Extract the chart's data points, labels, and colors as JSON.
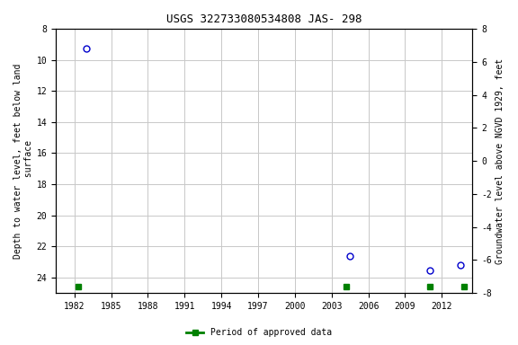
{
  "title": "USGS 322733080534808 JAS- 298",
  "ylabel_left": "Depth to water level, feet below land\n surface",
  "ylabel_right": "Groundwater level above NGVD 1929, feet",
  "background_color": "#ffffff",
  "plot_bg_color": "#ffffff",
  "grid_color": "#c8c8c8",
  "x_min": 1980.5,
  "x_max": 2014.5,
  "y_left_min": 8,
  "y_left_max": 25,
  "y_right_min": -8,
  "y_right_max": 8,
  "x_ticks": [
    1982,
    1985,
    1988,
    1991,
    1994,
    1997,
    2000,
    2003,
    2006,
    2009,
    2012
  ],
  "y_left_ticks": [
    8,
    10,
    12,
    14,
    16,
    18,
    20,
    22,
    24
  ],
  "y_right_ticks": [
    8,
    6,
    4,
    2,
    0,
    -2,
    -4,
    -6,
    -8
  ],
  "data_points": [
    {
      "x": 1983.0,
      "y_depth": 9.3
    },
    {
      "x": 2004.5,
      "y_depth": 22.6
    },
    {
      "x": 2011.0,
      "y_depth": 23.55
    },
    {
      "x": 2013.5,
      "y_depth": 23.2
    }
  ],
  "green_bars": [
    {
      "x": 1982.3
    },
    {
      "x": 2004.2
    },
    {
      "x": 2011.0
    },
    {
      "x": 2013.8
    }
  ],
  "point_color": "#0000cc",
  "green_color": "#008000",
  "legend_label": "Period of approved data",
  "font_family": "monospace",
  "title_fontsize": 9,
  "axis_fontsize": 7,
  "ylabel_fontsize": 7
}
